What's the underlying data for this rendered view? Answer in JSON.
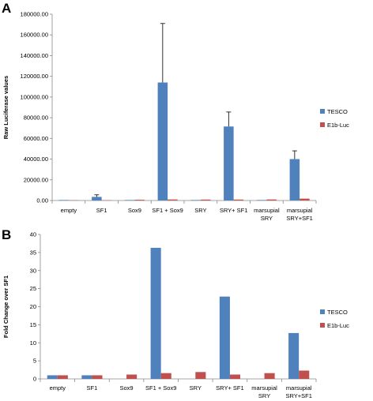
{
  "chart_data": [
    {
      "type": "bar",
      "panel_label": "A",
      "ylabel": "Raw Luciferase values",
      "ylim": [
        0,
        180000
      ],
      "ytick_step": 20000,
      "ytick_labels": [
        "0.00",
        "20000.00",
        "40000.00",
        "60000.00",
        "80000.00",
        "100000.00",
        "120000.00",
        "140000.00",
        "160000.00",
        "180000.00"
      ],
      "legend_position": "right",
      "categories": [
        [
          "empty"
        ],
        [
          "SF1"
        ],
        [
          "Sox9"
        ],
        [
          "SF1 + Sox9"
        ],
        [
          "SRY"
        ],
        [
          "SRY+ SF1"
        ],
        [
          "marsupial",
          "SRY"
        ],
        [
          "marsupial",
          "SRY+SF1"
        ]
      ],
      "series": [
        {
          "name": "TESCO",
          "color": "#4F81BD",
          "values": [
            500,
            3500,
            500,
            114000,
            500,
            71500,
            500,
            40000
          ],
          "errors": [
            0,
            2000,
            0,
            57000,
            0,
            14000,
            0,
            8000
          ]
        },
        {
          "name": "E1b-Luc",
          "color": "#C0504D",
          "values": [
            300,
            300,
            700,
            1000,
            900,
            900,
            1000,
            1800
          ],
          "errors": [
            0,
            0,
            0,
            0,
            0,
            0,
            0,
            0
          ]
        }
      ]
    },
    {
      "type": "bar",
      "panel_label": "B",
      "ylabel": "Fold Change over SF1",
      "ylim": [
        0,
        40
      ],
      "ytick_step": 5,
      "ytick_labels": [
        "0",
        "5",
        "10",
        "15",
        "20",
        "25",
        "30",
        "35",
        "40"
      ],
      "legend_position": "right",
      "categories": [
        [
          "empty"
        ],
        [
          "SF1"
        ],
        [
          "Sox9"
        ],
        [
          "SF1 + Sox9"
        ],
        [
          "SRY"
        ],
        [
          "SRY+ SF1"
        ],
        [
          "marsupial",
          "SRY"
        ],
        [
          "marsupial",
          "SRY+SF1"
        ]
      ],
      "series": [
        {
          "name": "TESCO",
          "color": "#4F81BD",
          "values": [
            1,
            1,
            0,
            36.3,
            0,
            22.8,
            0,
            12.7
          ]
        },
        {
          "name": "E1b-Luc",
          "color": "#C0504D",
          "values": [
            1,
            1,
            1.2,
            1.6,
            1.9,
            1.2,
            1.6,
            2.3
          ]
        }
      ]
    }
  ]
}
